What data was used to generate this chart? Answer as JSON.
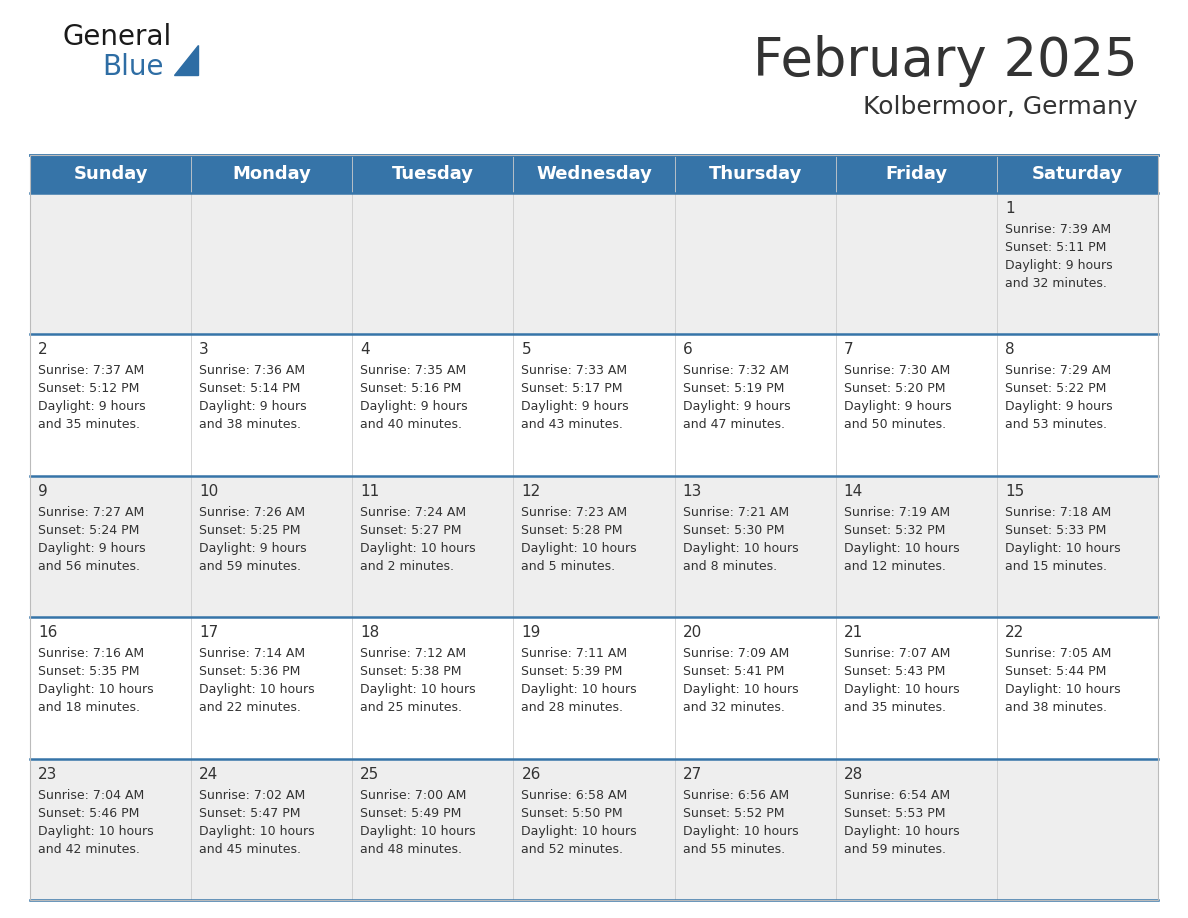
{
  "title": "February 2025",
  "subtitle": "Kolbermoor, Germany",
  "header_bg_color": "#3674a8",
  "header_text_color": "#FFFFFF",
  "cell_bg_color": "#eeeeee",
  "cell_bg_white": "#ffffff",
  "divider_color": "#3674a8",
  "text_color": "#333333",
  "days_of_week": [
    "Sunday",
    "Monday",
    "Tuesday",
    "Wednesday",
    "Thursday",
    "Friday",
    "Saturday"
  ],
  "calendar": [
    [
      {
        "day": null,
        "sunrise": null,
        "sunset": null,
        "daylight": null
      },
      {
        "day": null,
        "sunrise": null,
        "sunset": null,
        "daylight": null
      },
      {
        "day": null,
        "sunrise": null,
        "sunset": null,
        "daylight": null
      },
      {
        "day": null,
        "sunrise": null,
        "sunset": null,
        "daylight": null
      },
      {
        "day": null,
        "sunrise": null,
        "sunset": null,
        "daylight": null
      },
      {
        "day": null,
        "sunrise": null,
        "sunset": null,
        "daylight": null
      },
      {
        "day": 1,
        "sunrise": "7:39 AM",
        "sunset": "5:11 PM",
        "daylight": "9 hours\nand 32 minutes."
      }
    ],
    [
      {
        "day": 2,
        "sunrise": "7:37 AM",
        "sunset": "5:12 PM",
        "daylight": "9 hours\nand 35 minutes."
      },
      {
        "day": 3,
        "sunrise": "7:36 AM",
        "sunset": "5:14 PM",
        "daylight": "9 hours\nand 38 minutes."
      },
      {
        "day": 4,
        "sunrise": "7:35 AM",
        "sunset": "5:16 PM",
        "daylight": "9 hours\nand 40 minutes."
      },
      {
        "day": 5,
        "sunrise": "7:33 AM",
        "sunset": "5:17 PM",
        "daylight": "9 hours\nand 43 minutes."
      },
      {
        "day": 6,
        "sunrise": "7:32 AM",
        "sunset": "5:19 PM",
        "daylight": "9 hours\nand 47 minutes."
      },
      {
        "day": 7,
        "sunrise": "7:30 AM",
        "sunset": "5:20 PM",
        "daylight": "9 hours\nand 50 minutes."
      },
      {
        "day": 8,
        "sunrise": "7:29 AM",
        "sunset": "5:22 PM",
        "daylight": "9 hours\nand 53 minutes."
      }
    ],
    [
      {
        "day": 9,
        "sunrise": "7:27 AM",
        "sunset": "5:24 PM",
        "daylight": "9 hours\nand 56 minutes."
      },
      {
        "day": 10,
        "sunrise": "7:26 AM",
        "sunset": "5:25 PM",
        "daylight": "9 hours\nand 59 minutes."
      },
      {
        "day": 11,
        "sunrise": "7:24 AM",
        "sunset": "5:27 PM",
        "daylight": "10 hours\nand 2 minutes."
      },
      {
        "day": 12,
        "sunrise": "7:23 AM",
        "sunset": "5:28 PM",
        "daylight": "10 hours\nand 5 minutes."
      },
      {
        "day": 13,
        "sunrise": "7:21 AM",
        "sunset": "5:30 PM",
        "daylight": "10 hours\nand 8 minutes."
      },
      {
        "day": 14,
        "sunrise": "7:19 AM",
        "sunset": "5:32 PM",
        "daylight": "10 hours\nand 12 minutes."
      },
      {
        "day": 15,
        "sunrise": "7:18 AM",
        "sunset": "5:33 PM",
        "daylight": "10 hours\nand 15 minutes."
      }
    ],
    [
      {
        "day": 16,
        "sunrise": "7:16 AM",
        "sunset": "5:35 PM",
        "daylight": "10 hours\nand 18 minutes."
      },
      {
        "day": 17,
        "sunrise": "7:14 AM",
        "sunset": "5:36 PM",
        "daylight": "10 hours\nand 22 minutes."
      },
      {
        "day": 18,
        "sunrise": "7:12 AM",
        "sunset": "5:38 PM",
        "daylight": "10 hours\nand 25 minutes."
      },
      {
        "day": 19,
        "sunrise": "7:11 AM",
        "sunset": "5:39 PM",
        "daylight": "10 hours\nand 28 minutes."
      },
      {
        "day": 20,
        "sunrise": "7:09 AM",
        "sunset": "5:41 PM",
        "daylight": "10 hours\nand 32 minutes."
      },
      {
        "day": 21,
        "sunrise": "7:07 AM",
        "sunset": "5:43 PM",
        "daylight": "10 hours\nand 35 minutes."
      },
      {
        "day": 22,
        "sunrise": "7:05 AM",
        "sunset": "5:44 PM",
        "daylight": "10 hours\nand 38 minutes."
      }
    ],
    [
      {
        "day": 23,
        "sunrise": "7:04 AM",
        "sunset": "5:46 PM",
        "daylight": "10 hours\nand 42 minutes."
      },
      {
        "day": 24,
        "sunrise": "7:02 AM",
        "sunset": "5:47 PM",
        "daylight": "10 hours\nand 45 minutes."
      },
      {
        "day": 25,
        "sunrise": "7:00 AM",
        "sunset": "5:49 PM",
        "daylight": "10 hours\nand 48 minutes."
      },
      {
        "day": 26,
        "sunrise": "6:58 AM",
        "sunset": "5:50 PM",
        "daylight": "10 hours\nand 52 minutes."
      },
      {
        "day": 27,
        "sunrise": "6:56 AM",
        "sunset": "5:52 PM",
        "daylight": "10 hours\nand 55 minutes."
      },
      {
        "day": 28,
        "sunrise": "6:54 AM",
        "sunset": "5:53 PM",
        "daylight": "10 hours\nand 59 minutes."
      },
      {
        "day": null,
        "sunrise": null,
        "sunset": null,
        "daylight": null
      }
    ]
  ],
  "logo_color_general": "#1a1a1a",
  "logo_color_blue": "#2E6DA4",
  "title_fontsize": 38,
  "subtitle_fontsize": 18,
  "header_fontsize": 13,
  "day_number_fontsize": 11,
  "cell_text_fontsize": 9
}
